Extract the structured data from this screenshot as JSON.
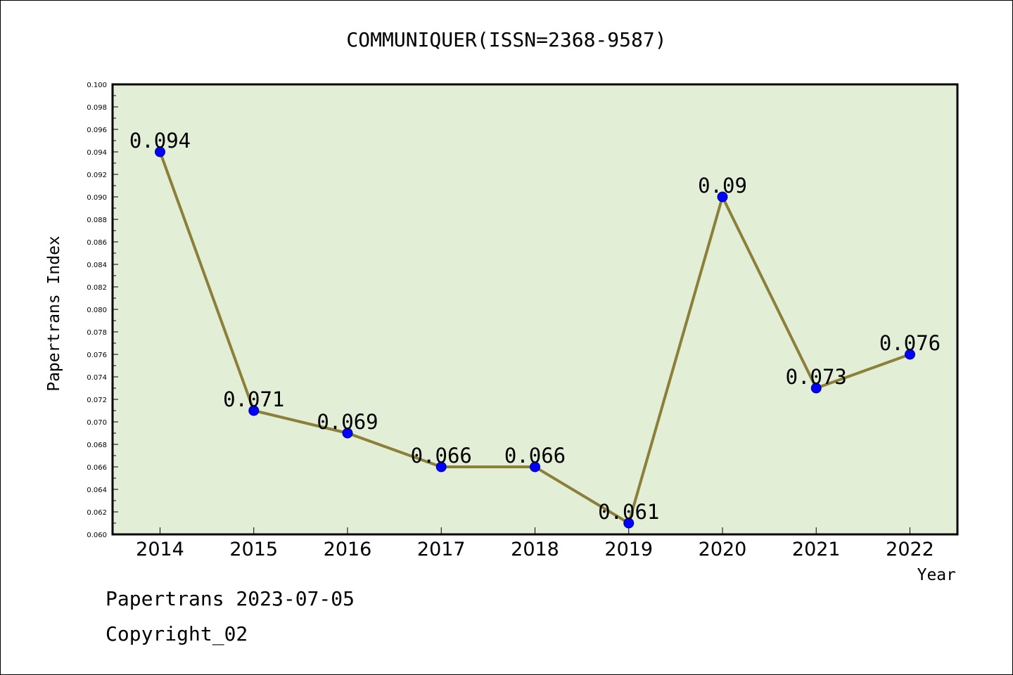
{
  "chart_data": {
    "type": "line",
    "title": "COMMUNIQUER(ISSN=2368-9587)",
    "xlabel": "Year",
    "ylabel": "Papertrans Index",
    "categories": [
      "2014",
      "2015",
      "2016",
      "2017",
      "2018",
      "2019",
      "2020",
      "2021",
      "2022"
    ],
    "series": [
      {
        "values": [
          0.094,
          0.071,
          0.069,
          0.066,
          0.066,
          0.061,
          0.09,
          0.073,
          0.076
        ],
        "labels": [
          "0.094",
          "0.071",
          "0.069",
          "0.066",
          "0.066",
          "0.061",
          "0.09",
          "0.073",
          "0.076"
        ]
      }
    ],
    "ylim": [
      0.06,
      0.1
    ],
    "yticks": [
      "0.060",
      "0.062",
      "0.064",
      "0.066",
      "0.068",
      "0.070",
      "0.072",
      "0.074",
      "0.076",
      "0.078",
      "0.080",
      "0.082",
      "0.084",
      "0.086",
      "0.088",
      "0.090",
      "0.092",
      "0.094",
      "0.096",
      "0.098",
      "0.100"
    ],
    "grid": false,
    "legend": "none",
    "colors": {
      "plot_background": "#e2efd6",
      "line": "#8b7f3a",
      "marker": "#0000ff",
      "marker_edge": "#00008b",
      "axis": "#000000"
    }
  },
  "footer": {
    "source": "Papertrans 2023-07-05",
    "copyright": "Copyright_02"
  }
}
